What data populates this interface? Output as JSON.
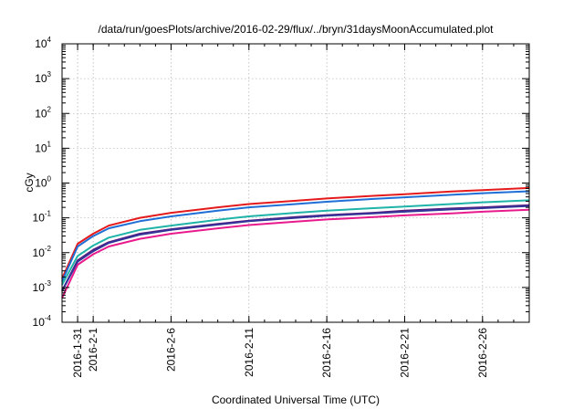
{
  "chart_data": {
    "type": "line",
    "title": "/data/run/goesPlots/archive/2016-02-29/flux/../bryn/31daysMoonAccumulated.plot",
    "xlabel": "Coordinated Universal Time (UTC)",
    "ylabel": "cGy",
    "yscale": "log",
    "ylim": [
      0.0001,
      10000
    ],
    "xlim": [
      "2016-01-30",
      "2016-02-29"
    ],
    "grid": true,
    "x_ticks": [
      {
        "date": "2016-01-31",
        "label": "2016-1-31"
      },
      {
        "date": "2016-02-01",
        "label": "2016-2-1"
      },
      {
        "date": "2016-02-06",
        "label": "2016-2-6"
      },
      {
        "date": "2016-02-11",
        "label": "2016-2-11"
      },
      {
        "date": "2016-02-16",
        "label": "2016-2-16"
      },
      {
        "date": "2016-02-21",
        "label": "2016-2-21"
      },
      {
        "date": "2016-02-26",
        "label": "2016-2-26"
      }
    ],
    "y_ticks": [
      {
        "value": 0.0001,
        "base": "10",
        "exp": "-4"
      },
      {
        "value": 0.001,
        "base": "10",
        "exp": "-3"
      },
      {
        "value": 0.01,
        "base": "10",
        "exp": "-2"
      },
      {
        "value": 0.1,
        "base": "10",
        "exp": "-1"
      },
      {
        "value": 1,
        "base": "10",
        "exp": "0"
      },
      {
        "value": 10,
        "base": "10",
        "exp": "1"
      },
      {
        "value": 100,
        "base": "10",
        "exp": "2"
      },
      {
        "value": 1000,
        "base": "10",
        "exp": "3"
      },
      {
        "value": 10000,
        "base": "10",
        "exp": "4"
      }
    ],
    "x": [
      "2016-01-30",
      "2016-01-31",
      "2016-02-01",
      "2016-02-02",
      "2016-02-04",
      "2016-02-06",
      "2016-02-09",
      "2016-02-11",
      "2016-02-14",
      "2016-02-16",
      "2016-02-19",
      "2016-02-21",
      "2016-02-24",
      "2016-02-26",
      "2016-02-29"
    ],
    "series": [
      {
        "color": "#e41a1c",
        "values": [
          0.0018,
          0.018,
          0.035,
          0.06,
          0.1,
          0.14,
          0.2,
          0.25,
          0.31,
          0.36,
          0.43,
          0.48,
          0.57,
          0.63,
          0.72
        ]
      },
      {
        "color": "#1f6fd6",
        "values": [
          0.0015,
          0.015,
          0.03,
          0.05,
          0.08,
          0.11,
          0.16,
          0.2,
          0.25,
          0.29,
          0.35,
          0.39,
          0.46,
          0.51,
          0.58
        ]
      },
      {
        "color": "#20b3a8",
        "values": [
          0.0012,
          0.008,
          0.016,
          0.027,
          0.045,
          0.06,
          0.088,
          0.11,
          0.14,
          0.16,
          0.19,
          0.21,
          0.25,
          0.28,
          0.32
        ]
      },
      {
        "color": "#5a1a7a",
        "values": [
          0.0008,
          0.006,
          0.012,
          0.02,
          0.035,
          0.047,
          0.067,
          0.083,
          0.105,
          0.12,
          0.14,
          0.16,
          0.185,
          0.2,
          0.23
        ]
      },
      {
        "color": "#333399",
        "values": [
          0.0008,
          0.0055,
          0.011,
          0.019,
          0.033,
          0.045,
          0.064,
          0.08,
          0.1,
          0.115,
          0.135,
          0.15,
          0.175,
          0.19,
          0.22
        ]
      },
      {
        "color": "#e81a8c",
        "values": [
          0.0005,
          0.0045,
          0.009,
          0.015,
          0.025,
          0.035,
          0.05,
          0.062,
          0.078,
          0.09,
          0.105,
          0.118,
          0.135,
          0.15,
          0.17
        ]
      }
    ]
  }
}
